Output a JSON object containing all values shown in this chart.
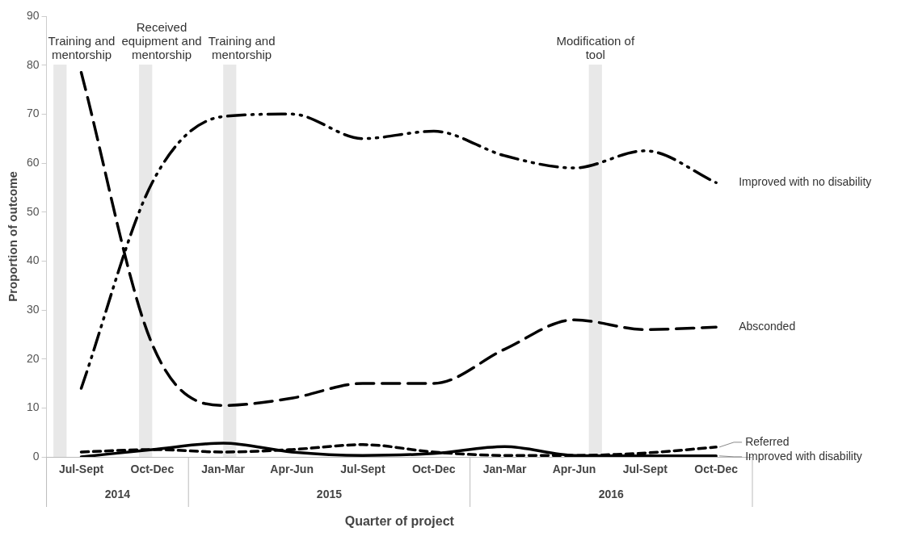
{
  "chart_data": {
    "type": "line",
    "xlabel": "Quarter of project",
    "ylabel": "Proportion of outcome",
    "x": [
      "2014-08-15",
      "2014-11-15",
      "2015-02-15",
      "2015-05-15",
      "2015-08-15",
      "2015-11-15",
      "2016-02-15",
      "2016-05-15",
      "2016-08-15",
      "2016-11-15"
    ],
    "xlim": [
      "2014-07-01",
      "2017-01-01"
    ],
    "xticks": [
      {
        "value": "2014-08-15",
        "label": "Jul-Sept"
      },
      {
        "value": "2014-11-15",
        "label": "Oct-Dec"
      },
      {
        "value": "2015-02-15",
        "label": "Jan-Mar"
      },
      {
        "value": "2015-05-15",
        "label": "Apr-Jun"
      },
      {
        "value": "2015-08-15",
        "label": "Jul-Sept"
      },
      {
        "value": "2015-11-15",
        "label": "Oct-Dec"
      },
      {
        "value": "2016-02-15",
        "label": "Jan-Mar"
      },
      {
        "value": "2016-05-15",
        "label": "Apr-Jun"
      },
      {
        "value": "2016-08-15",
        "label": "Jul-Sept"
      },
      {
        "value": "2016-11-15",
        "label": "Oct-Dec"
      }
    ],
    "ylim": [
      0,
      90
    ],
    "yticks": [
      0,
      10,
      20,
      30,
      40,
      50,
      60,
      70,
      80,
      90
    ],
    "grid": false,
    "legend": false,
    "marker": "none",
    "series": [
      {
        "name": "Improved with no disability",
        "color": "#000000",
        "line_style": "dashdot",
        "values": [
          14,
          56,
          69.5,
          70,
          65,
          66.5,
          61.5,
          59,
          62.5,
          56
        ]
      },
      {
        "name": "Absconded",
        "color": "#000000",
        "line_style": "dashed",
        "values": [
          78.5,
          23,
          10.5,
          12,
          15,
          15,
          22,
          28,
          26,
          26.5
        ]
      },
      {
        "name": "Referred",
        "color": "#000000",
        "line_style": "dotted",
        "values": [
          1,
          1.5,
          1,
          1.5,
          2.5,
          1,
          0.3,
          0.3,
          0.8,
          2
        ]
      },
      {
        "name": "Improved with disability",
        "color": "#000000",
        "line_style": "solid",
        "values": [
          0,
          1.5,
          2.8,
          1,
          0.3,
          0.7,
          2.1,
          0.3,
          0.2,
          0.2
        ]
      }
    ],
    "bands": [
      {
        "axis": "x",
        "from": "2014-07-10",
        "to": "2014-07-27",
        "label": "Training and mentorship",
        "color": "#e8e8e8"
      },
      {
        "axis": "x",
        "from": "2014-10-29",
        "to": "2014-11-15",
        "label": "Received equipment and mentorship",
        "color": "#e8e8e8"
      },
      {
        "axis": "x",
        "from": "2015-02-15",
        "to": "2015-03-04",
        "label": "Training and mentorship",
        "color": "#e8e8e8"
      },
      {
        "axis": "x",
        "from": "2016-06-03",
        "to": "2016-06-20",
        "label": "Modification of tool",
        "color": "#e8e8e8"
      }
    ],
    "annotations": [
      "2014",
      "2015",
      "2016"
    ]
  }
}
